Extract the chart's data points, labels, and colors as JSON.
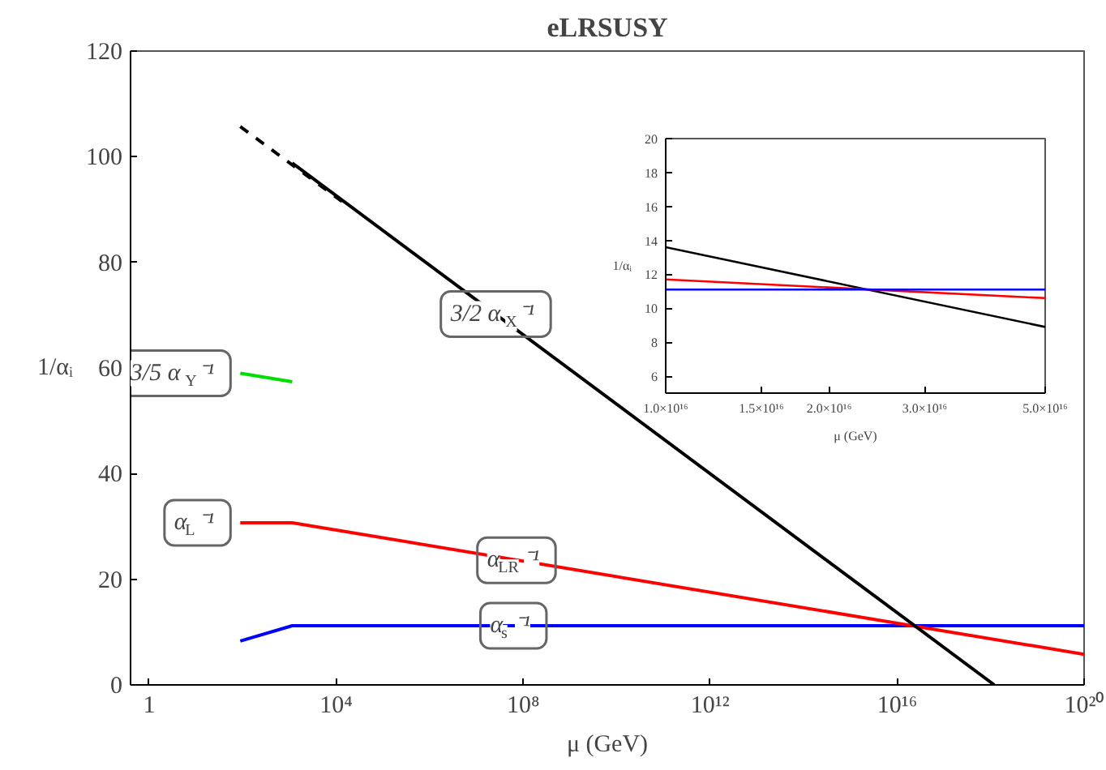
{
  "chart_data": [
    {
      "type": "line",
      "title": "eLRSUSY",
      "xlabel": "μ (GeV)",
      "ylabel": "1/αᵢ",
      "log": "x",
      "xlim": [
        0.4,
        1e+20
      ],
      "ylim": [
        0,
        120
      ],
      "xticks": [
        1,
        {
          "value": 10000.0,
          "label": "10⁴"
        },
        {
          "value": 100000000.0,
          "label": "10⁸"
        },
        {
          "value": 1000000000000.0,
          "label": "10¹²"
        },
        {
          "value": 1e+16,
          "label": "10¹⁶"
        },
        {
          "value": 1e+20,
          "label": "10²⁰"
        }
      ],
      "yticks": [
        0,
        20,
        40,
        60,
        80,
        100,
        120
      ],
      "grid": false,
      "marker": "none",
      "line_style": "solid",
      "series": [
        {
          "color": "#0000ff",
          "x": [
            89,
            1150,
            1e+20
          ],
          "values": [
            8.3,
            11.2,
            11.2
          ]
        },
        {
          "color": "#ff0000",
          "x": [
            89,
            1150,
            1e+20
          ],
          "values": [
            30.7,
            30.7,
            5.8
          ]
        },
        {
          "color": "#00dd00",
          "x": [
            89,
            1150
          ],
          "values": [
            59.0,
            57.4
          ]
        },
        {
          "color": "#000000",
          "x": [
            1150,
            1.2e+18
          ],
          "values": [
            98.8,
            0
          ]
        },
        {
          "color": "#000000",
          "x": [
            89,
            16000
          ],
          "values": [
            105.7,
            91.0
          ],
          "line_style": "dashed"
        }
      ],
      "annotations": [
        {
          "text": "3/2 α$_{X}$⁻¹",
          "x": 26000000.0,
          "y": 70.2
        },
        {
          "text": "3/5 α$_{Y}$⁻¹",
          "x": 89,
          "y": 59.0
        },
        {
          "text": "α$_{L}$⁻¹",
          "x": 89,
          "y": 30.7
        },
        {
          "text": "α$_{LR}$⁻¹",
          "x": 72000000.0,
          "y": 23.6
        },
        {
          "text": "α$_{s}$⁻¹",
          "x": 62000000.0,
          "y": 11.2
        }
      ]
    },
    {
      "type": "line",
      "xlabel": "μ (GeV)",
      "ylabel": "1/αᵢ",
      "log": "x",
      "xlim": [
        1e+16,
        5e+16
      ],
      "ylim": [
        5,
        20
      ],
      "xticks": [
        {
          "value": 1e+16,
          "label": "1.0×10¹⁶"
        },
        {
          "value": 1.5e+16,
          "label": "1.5×10¹⁶"
        },
        {
          "value": 2e+16,
          "label": "2.0×10¹⁶"
        },
        {
          "value": 3e+16,
          "label": "3.0×10¹⁶"
        },
        {
          "value": 5e+16,
          "label": "5.0×10¹⁶"
        }
      ],
      "yticks": [
        6,
        8,
        10,
        12,
        14,
        16,
        18,
        20
      ],
      "grid": false,
      "marker": "none",
      "line_style": "solid",
      "series": [
        {
          "color": "#000000",
          "x": [
            1e+16,
            5e+16
          ],
          "values": [
            13.6,
            8.9
          ]
        },
        {
          "color": "#ff0000",
          "x": [
            1e+16,
            5e+16
          ],
          "values": [
            11.7,
            10.6
          ]
        },
        {
          "color": "#0000ff",
          "x": [
            1e+16,
            5e+16
          ],
          "values": [
            11.1,
            11.1
          ]
        }
      ]
    }
  ]
}
